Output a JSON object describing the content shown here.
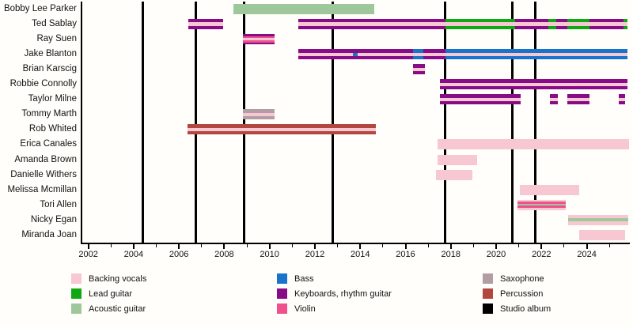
{
  "chart_data": {
    "type": "timeline",
    "title": "",
    "x_axis": {
      "range": [
        2001.7,
        2025.9
      ],
      "major_ticks": [
        2002,
        2004,
        2006,
        2008,
        2010,
        2012,
        2014,
        2016,
        2018,
        2020,
        2022,
        2024
      ],
      "minor_tick_interval": 1
    },
    "instrument_colors": {
      "backing_vocals": "#f8c8d2",
      "lead_guitar": "#0fa712",
      "acoustic_guitar": "#9ec89b",
      "bass": "#1874cb",
      "keyboards_rhythm_guitar": "#870c87",
      "violin": "#f0508c",
      "saxophone": "#b29da4",
      "percussion": "#b1473f",
      "studio_album": "#000000"
    },
    "album_release_years": [
      2004.42,
      2006.76,
      2008.89,
      2012.77,
      2017.76,
      2020.73,
      2021.71
    ],
    "members": [
      {
        "name": "Bobby Lee Parker",
        "segments": [
          {
            "start": 2008.4,
            "end": 2014.62,
            "stripes": [
              "acoustic_guitar"
            ]
          }
        ]
      },
      {
        "name": "Ted Sablay",
        "segments": [
          {
            "start": 2006.41,
            "end": 2007.95,
            "stripes": [
              "keyboards_rhythm_guitar",
              "backing_vocals",
              "keyboards_rhythm_guitar"
            ]
          },
          {
            "start": 2011.27,
            "end": 2017.76,
            "stripes": [
              "keyboards_rhythm_guitar",
              "backing_vocals",
              "keyboards_rhythm_guitar"
            ]
          },
          {
            "start": 2017.76,
            "end": 2020.85,
            "stripes": [
              "lead_guitar",
              "backing_vocals",
              "lead_guitar"
            ]
          },
          {
            "start": 2020.85,
            "end": 2022.3,
            "stripes": [
              "keyboards_rhythm_guitar",
              "backing_vocals",
              "keyboards_rhythm_guitar"
            ]
          },
          {
            "start": 2022.3,
            "end": 2022.65,
            "stripes": [
              "lead_guitar",
              "backing_vocals",
              "lead_guitar"
            ]
          },
          {
            "start": 2022.65,
            "end": 2023.14,
            "stripes": [
              "keyboards_rhythm_guitar",
              "backing_vocals",
              "keyboards_rhythm_guitar"
            ]
          },
          {
            "start": 2023.14,
            "end": 2024.12,
            "stripes": [
              "lead_guitar",
              "backing_vocals",
              "lead_guitar"
            ]
          },
          {
            "start": 2024.12,
            "end": 2025.62,
            "stripes": [
              "keyboards_rhythm_guitar",
              "backing_vocals",
              "keyboards_rhythm_guitar"
            ]
          },
          {
            "start": 2025.62,
            "end": 2025.79,
            "stripes": [
              "lead_guitar",
              "backing_vocals",
              "lead_guitar"
            ]
          }
        ]
      },
      {
        "name": "Ray Suen",
        "segments": [
          {
            "start": 2008.82,
            "end": 2010.22,
            "stripes": [
              "keyboards_rhythm_guitar",
              "violin",
              "backing_vocals",
              "violin",
              "keyboards_rhythm_guitar"
            ]
          }
        ]
      },
      {
        "name": "Jake Blanton",
        "segments": [
          {
            "start": 2011.27,
            "end": 2013.68,
            "stripes": [
              "keyboards_rhythm_guitar",
              "backing_vocals",
              "keyboards_rhythm_guitar"
            ]
          },
          {
            "start": 2013.68,
            "end": 2013.89,
            "stripes": [
              "keyboards_rhythm_guitar",
              "bass",
              "keyboards_rhythm_guitar"
            ]
          },
          {
            "start": 2013.89,
            "end": 2016.33,
            "stripes": [
              "keyboards_rhythm_guitar",
              "backing_vocals",
              "keyboards_rhythm_guitar"
            ]
          },
          {
            "start": 2016.33,
            "end": 2016.78,
            "stripes": [
              "bass",
              "backing_vocals",
              "bass"
            ]
          },
          {
            "start": 2016.78,
            "end": 2017.76,
            "stripes": [
              "keyboards_rhythm_guitar",
              "backing_vocals",
              "keyboards_rhythm_guitar"
            ]
          },
          {
            "start": 2017.76,
            "end": 2025.8,
            "stripes": [
              "bass",
              "backing_vocals",
              "bass"
            ]
          }
        ]
      },
      {
        "name": "Brian Karscig",
        "segments": [
          {
            "start": 2016.33,
            "end": 2016.85,
            "stripes": [
              "keyboards_rhythm_guitar",
              "backing_vocals",
              "keyboards_rhythm_guitar"
            ]
          }
        ]
      },
      {
        "name": "Robbie Connolly",
        "segments": [
          {
            "start": 2017.52,
            "end": 2025.8,
            "stripes": [
              "keyboards_rhythm_guitar",
              "backing_vocals",
              "keyboards_rhythm_guitar"
            ]
          }
        ]
      },
      {
        "name": "Taylor Milne",
        "segments": [
          {
            "start": 2017.52,
            "end": 2021.08,
            "stripes": [
              "keyboards_rhythm_guitar",
              "backing_vocals",
              "keyboards_rhythm_guitar"
            ]
          },
          {
            "start": 2022.37,
            "end": 2022.72,
            "stripes": [
              "keyboards_rhythm_guitar",
              "backing_vocals",
              "keyboards_rhythm_guitar"
            ]
          },
          {
            "start": 2023.14,
            "end": 2024.12,
            "stripes": [
              "keyboards_rhythm_guitar",
              "backing_vocals",
              "keyboards_rhythm_guitar"
            ]
          },
          {
            "start": 2025.41,
            "end": 2025.69,
            "stripes": [
              "keyboards_rhythm_guitar",
              "backing_vocals",
              "keyboards_rhythm_guitar"
            ]
          }
        ]
      },
      {
        "name": "Tommy Marth",
        "segments": [
          {
            "start": 2008.82,
            "end": 2010.22,
            "stripes": [
              "saxophone",
              "backing_vocals",
              "saxophone"
            ]
          }
        ]
      },
      {
        "name": "Rob Whited",
        "segments": [
          {
            "start": 2006.38,
            "end": 2014.69,
            "stripes": [
              "percussion",
              "backing_vocals",
              "percussion"
            ]
          }
        ]
      },
      {
        "name": "Erica Canales",
        "segments": [
          {
            "start": 2017.41,
            "end": 2025.86,
            "stripes": [
              "backing_vocals"
            ]
          }
        ]
      },
      {
        "name": "Amanda Brown",
        "segments": [
          {
            "start": 2017.41,
            "end": 2019.16,
            "stripes": [
              "backing_vocals"
            ]
          }
        ]
      },
      {
        "name": "Danielle Withers",
        "segments": [
          {
            "start": 2017.34,
            "end": 2018.95,
            "stripes": [
              "backing_vocals"
            ]
          }
        ]
      },
      {
        "name": "Melissa Mcmillan",
        "segments": [
          {
            "start": 2021.04,
            "end": 2023.66,
            "stripes": [
              "backing_vocals"
            ]
          }
        ]
      },
      {
        "name": "Tori Allen",
        "segments": [
          {
            "start": 2020.95,
            "end": 2023.07,
            "stripes": [
              "backing_vocals",
              "violin",
              "acoustic_guitar",
              "violin",
              "backing_vocals"
            ]
          }
        ]
      },
      {
        "name": "Nicky Egan",
        "segments": [
          {
            "start": 2023.17,
            "end": 2025.83,
            "stripes": [
              "backing_vocals",
              "acoustic_guitar",
              "backing_vocals"
            ]
          }
        ]
      },
      {
        "name": "Miranda Joan",
        "segments": [
          {
            "start": 2023.66,
            "end": 2025.69,
            "stripes": [
              "backing_vocals"
            ]
          }
        ]
      }
    ],
    "legend": {
      "columns": [
        [
          {
            "label": "Backing vocals",
            "key": "backing_vocals"
          },
          {
            "label": "Lead guitar",
            "key": "lead_guitar"
          },
          {
            "label": "Acoustic guitar",
            "key": "acoustic_guitar"
          }
        ],
        [
          {
            "label": "Bass",
            "key": "bass"
          },
          {
            "label": "Keyboards, rhythm guitar",
            "key": "keyboards_rhythm_guitar"
          },
          {
            "label": "Violin",
            "key": "violin"
          }
        ],
        [
          {
            "label": "Saxophone",
            "key": "saxophone"
          },
          {
            "label": "Percussion",
            "key": "percussion"
          },
          {
            "label": "Studio album",
            "key": "studio_album"
          }
        ]
      ]
    }
  }
}
